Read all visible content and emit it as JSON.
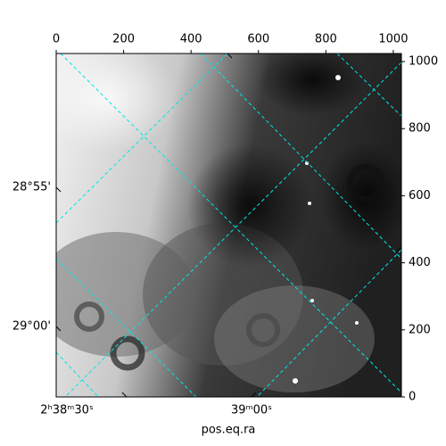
{
  "chart_data": {
    "type": "image",
    "x_label": "pos.eq.ra",
    "xlim": [
      0,
      1024
    ],
    "xticks": [
      0,
      200,
      400,
      600,
      800,
      1000
    ],
    "ylim": [
      0,
      1024
    ],
    "yticks": [
      0,
      200,
      400,
      600,
      800,
      1000
    ],
    "ra_ticks": [
      "2ʰ38ᵐ30ˢ",
      "39ᵐ00ˢ"
    ],
    "dec_ticks": [
      "28°55'",
      "29°00'"
    ],
    "grid_color": "#00e5e5"
  }
}
